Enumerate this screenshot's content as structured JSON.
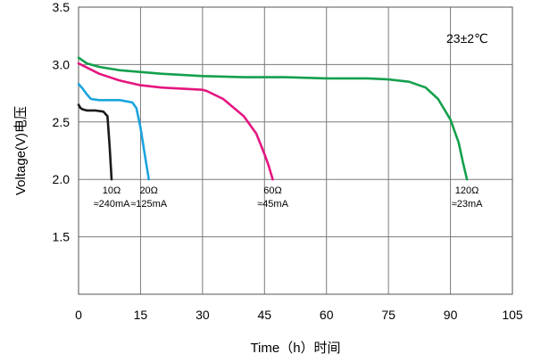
{
  "chart_data": {
    "type": "line",
    "xlabel": "Time（h）时间",
    "ylabel": "Voltage(V)电压",
    "annotation": "23±2℃",
    "xlim": [
      0,
      105
    ],
    "ylim": [
      1.0,
      3.5
    ],
    "x_ticks": [
      "0",
      "15",
      "30",
      "45",
      "60",
      "75",
      "90",
      "105"
    ],
    "y_ticks": [
      "1.5",
      "2.0",
      "2.5",
      "3.0",
      "3.5"
    ],
    "grid": true,
    "series": [
      {
        "load": "10Ω",
        "current": "≈240mA",
        "color": "#1a1a1a",
        "x": [
          0,
          0.5,
          1,
          2,
          4,
          6,
          7,
          7.5,
          8
        ],
        "y": [
          2.65,
          2.62,
          2.61,
          2.6,
          2.6,
          2.59,
          2.55,
          2.3,
          2.0
        ]
      },
      {
        "load": "20Ω",
        "current": "≈125mA",
        "color": "#1ba4de",
        "x": [
          0,
          1,
          2,
          3,
          5,
          10,
          13,
          14,
          15,
          16,
          17
        ],
        "y": [
          2.83,
          2.79,
          2.74,
          2.7,
          2.69,
          2.69,
          2.67,
          2.62,
          2.45,
          2.22,
          2.0
        ]
      },
      {
        "load": "60Ω",
        "current": "≈45mA",
        "color": "#e4157f",
        "x": [
          0,
          5,
          10,
          15,
          20,
          25,
          30,
          31,
          35,
          40,
          43,
          45,
          46,
          47
        ],
        "y": [
          3.01,
          2.92,
          2.86,
          2.82,
          2.8,
          2.79,
          2.78,
          2.77,
          2.7,
          2.55,
          2.4,
          2.22,
          2.12,
          2.0
        ]
      },
      {
        "load": "120Ω",
        "current": "≈23mA",
        "color": "#14a04c",
        "x": [
          0,
          2,
          5,
          10,
          20,
          30,
          40,
          50,
          60,
          70,
          75,
          80,
          84,
          87,
          90,
          92,
          93,
          94
        ],
        "y": [
          3.06,
          3.01,
          2.98,
          2.95,
          2.92,
          2.9,
          2.89,
          2.89,
          2.88,
          2.88,
          2.87,
          2.85,
          2.8,
          2.7,
          2.52,
          2.32,
          2.15,
          2.0
        ]
      }
    ]
  }
}
